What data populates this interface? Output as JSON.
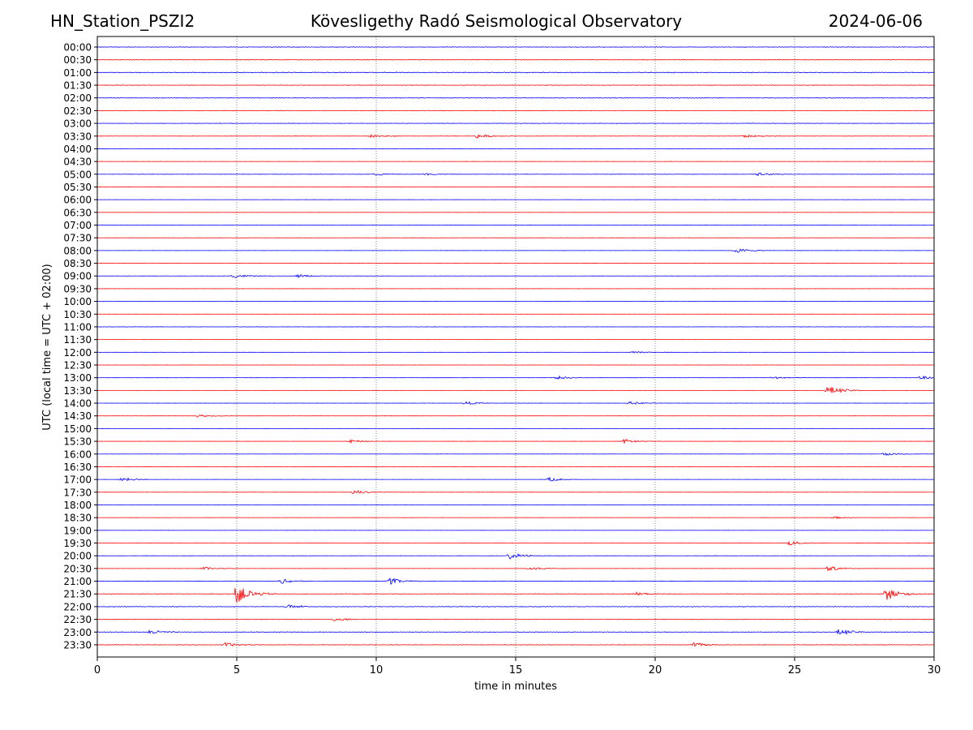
{
  "header": {
    "station": "HN_Station_PSZI2",
    "observatory": "Kövesligethy Radó Seismological Observatory",
    "date": "2024-06-06"
  },
  "chart_data": {
    "type": "line",
    "title": "Kövesligethy Radó Seismological Observatory",
    "xlabel": "time in minutes",
    "ylabel": "UTC (local time = UTC + 02:00)",
    "xlim": [
      0,
      30
    ],
    "x_ticks": [
      0,
      5,
      10,
      15,
      20,
      25,
      30
    ],
    "grid": "vertical dotted lines at 5-minute intervals",
    "series_colors": [
      "#0000ff",
      "#ff0000"
    ],
    "row_labels": [
      "00:00",
      "00:30",
      "01:00",
      "01:30",
      "02:00",
      "02:30",
      "03:00",
      "03:30",
      "04:00",
      "04:30",
      "05:00",
      "05:30",
      "06:00",
      "06:30",
      "07:00",
      "07:30",
      "08:00",
      "08:30",
      "09:00",
      "09:30",
      "10:00",
      "10:30",
      "11:00",
      "11:30",
      "12:00",
      "12:30",
      "13:00",
      "13:30",
      "14:00",
      "14:30",
      "15:00",
      "15:30",
      "16:00",
      "16:30",
      "17:00",
      "17:30",
      "18:00",
      "18:30",
      "19:00",
      "19:30",
      "20:00",
      "20:30",
      "21:00",
      "21:30",
      "22:00",
      "22:30",
      "23:00",
      "23:30"
    ],
    "noise": [
      0.35,
      0.35,
      0.45,
      0.35,
      0.4,
      0.3,
      0.3,
      0.2,
      0.15,
      0.15,
      0.2,
      0.15,
      0.12,
      0.12,
      0.2,
      0.15,
      0.15,
      0.12,
      0.15,
      0.12,
      0.12,
      0.12,
      0.2,
      0.12,
      0.12,
      0.15,
      0.15,
      0.12,
      0.12,
      0.12,
      0.12,
      0.12,
      0.12,
      0.1,
      0.12,
      0.1,
      0.1,
      0.1,
      0.1,
      0.1,
      0.15,
      0.15,
      0.2,
      0.4,
      0.4,
      0.35,
      0.35,
      0.35
    ],
    "events": [
      {
        "row": 7,
        "t": 9.8,
        "a": 2.5
      },
      {
        "row": 7,
        "t": 13.6,
        "a": 3
      },
      {
        "row": 7,
        "t": 23.2,
        "a": 2
      },
      {
        "row": 10,
        "t": 10.0,
        "a": 1.5
      },
      {
        "row": 10,
        "t": 11.8,
        "a": 1.5
      },
      {
        "row": 10,
        "t": 23.7,
        "a": 2.5
      },
      {
        "row": 16,
        "t": 22.9,
        "a": 3
      },
      {
        "row": 18,
        "t": 4.9,
        "a": 2.5
      },
      {
        "row": 18,
        "t": 7.2,
        "a": 2
      },
      {
        "row": 24,
        "t": 19.2,
        "a": 2
      },
      {
        "row": 26,
        "t": 16.5,
        "a": 2
      },
      {
        "row": 26,
        "t": 24.2,
        "a": 2
      },
      {
        "row": 26,
        "t": 29.5,
        "a": 2.5
      },
      {
        "row": 27,
        "t": 26.2,
        "a": 6
      },
      {
        "row": 28,
        "t": 13.2,
        "a": 2
      },
      {
        "row": 28,
        "t": 19.1,
        "a": 2
      },
      {
        "row": 29,
        "t": 3.6,
        "a": 2
      },
      {
        "row": 31,
        "t": 9.1,
        "a": 2
      },
      {
        "row": 31,
        "t": 18.9,
        "a": 3
      },
      {
        "row": 32,
        "t": 28.2,
        "a": 2
      },
      {
        "row": 34,
        "t": 0.9,
        "a": 2.5
      },
      {
        "row": 34,
        "t": 16.2,
        "a": 2.5
      },
      {
        "row": 35,
        "t": 9.2,
        "a": 3
      },
      {
        "row": 37,
        "t": 26.4,
        "a": 1.5
      },
      {
        "row": 39,
        "t": 24.8,
        "a": 3
      },
      {
        "row": 40,
        "t": 14.8,
        "a": 4
      },
      {
        "row": 41,
        "t": 3.8,
        "a": 2
      },
      {
        "row": 41,
        "t": 15.5,
        "a": 2.5
      },
      {
        "row": 41,
        "t": 26.2,
        "a": 3
      },
      {
        "row": 42,
        "t": 6.6,
        "a": 3
      },
      {
        "row": 42,
        "t": 10.5,
        "a": 4
      },
      {
        "row": 43,
        "t": 5.0,
        "a": 12
      },
      {
        "row": 43,
        "t": 28.3,
        "a": 8
      },
      {
        "row": 43,
        "t": 19.3,
        "a": 2
      },
      {
        "row": 44,
        "t": 6.8,
        "a": 2.5
      },
      {
        "row": 45,
        "t": 8.5,
        "a": 2.5
      },
      {
        "row": 46,
        "t": 1.9,
        "a": 3
      },
      {
        "row": 46,
        "t": 26.6,
        "a": 4
      },
      {
        "row": 47,
        "t": 4.6,
        "a": 3
      },
      {
        "row": 47,
        "t": 21.4,
        "a": 3
      }
    ]
  }
}
